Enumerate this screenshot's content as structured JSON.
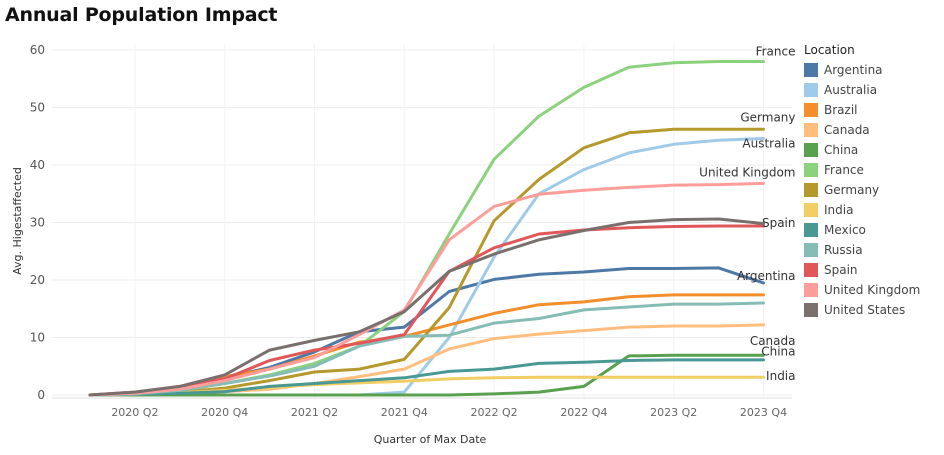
{
  "title": "Annual Population Impact",
  "chart_data": {
    "type": "line",
    "title": "Annual Population Impact",
    "xlabel": "Quarter of Max Date",
    "ylabel": "Avg. Higestaffected",
    "x": [
      "2020 Q1",
      "2020 Q2",
      "2020 Q3",
      "2020 Q4",
      "2021 Q1",
      "2021 Q2",
      "2021 Q3",
      "2021 Q4",
      "2022 Q1",
      "2022 Q2",
      "2022 Q3",
      "2022 Q4",
      "2023 Q1",
      "2023 Q2",
      "2023 Q3",
      "2023 Q4"
    ],
    "x_tick_labels": [
      "2020 Q2",
      "2020 Q4",
      "2021 Q2",
      "2021 Q4",
      "2022 Q2",
      "2022 Q4",
      "2023 Q2",
      "2023 Q4"
    ],
    "ylim": [
      0,
      60
    ],
    "y_ticks": [
      0,
      10,
      20,
      30,
      40,
      50,
      60
    ],
    "grid": true,
    "legend_title": "Location",
    "legend_position": "right",
    "series": [
      {
        "name": "Argentina",
        "color": "#4e79a7",
        "end_label": "Argentina",
        "values": [
          0,
          0.3,
          1.2,
          3.0,
          4.8,
          7.5,
          11,
          11.8,
          18,
          20.1,
          21,
          21.4,
          22,
          22,
          22.1,
          19.5
        ]
      },
      {
        "name": "Australia",
        "color": "#a0cbe8",
        "end_label": "Australia",
        "values": [
          0,
          0,
          0,
          0,
          0,
          0,
          0,
          0.5,
          10,
          24,
          35,
          39.2,
          42.1,
          43.6,
          44.3,
          44.6
        ]
      },
      {
        "name": "Brazil",
        "color": "#f28e2b",
        "end_label": "",
        "values": [
          0,
          0.4,
          1.5,
          3.2,
          4.5,
          6.8,
          9.2,
          10.2,
          12.2,
          14.2,
          15.7,
          16.2,
          17.1,
          17.4,
          17.4,
          17.4
        ]
      },
      {
        "name": "Canada",
        "color": "#ffbe7d",
        "end_label": "Canada",
        "values": [
          0,
          0.1,
          0.3,
          0.6,
          1.0,
          2.0,
          3.2,
          4.5,
          8.0,
          9.8,
          10.6,
          11.2,
          11.8,
          12.0,
          12.0,
          12.2
        ]
      },
      {
        "name": "China",
        "color": "#59a14f",
        "end_label": "China",
        "values": [
          0,
          0,
          0,
          0,
          0,
          0,
          0,
          0,
          0,
          0.2,
          0.5,
          1.5,
          6.8,
          6.9,
          6.9,
          6.9
        ]
      },
      {
        "name": "France",
        "color": "#8cd17d",
        "end_label": "France",
        "values": [
          0,
          0.2,
          0.8,
          2.0,
          3.5,
          5.5,
          8.5,
          14.5,
          28,
          41,
          48.5,
          53.5,
          57,
          57.8,
          58,
          58
        ]
      },
      {
        "name": "Germany",
        "color": "#b6992d",
        "end_label": "Germany",
        "values": [
          0,
          0.1,
          0.5,
          1.2,
          2.5,
          4.0,
          4.5,
          6.2,
          15.2,
          30.3,
          37.5,
          43,
          45.6,
          46.2,
          46.2,
          46.2
        ]
      },
      {
        "name": "India",
        "color": "#f1ce63",
        "end_label": "India",
        "values": [
          0,
          0.1,
          0.4,
          0.8,
          1.3,
          1.8,
          2.1,
          2.4,
          2.8,
          3.0,
          3.1,
          3.1,
          3.1,
          3.1,
          3.1,
          3.1
        ]
      },
      {
        "name": "Mexico",
        "color": "#499894",
        "end_label": "",
        "values": [
          0,
          0.1,
          0.3,
          0.6,
          1.5,
          2.0,
          2.5,
          3.0,
          4.1,
          4.5,
          5.5,
          5.7,
          6.0,
          6.1,
          6.1,
          6.1
        ]
      },
      {
        "name": "Russia",
        "color": "#86bcb6",
        "end_label": "",
        "values": [
          0,
          0.2,
          0.8,
          2.0,
          3.3,
          5.0,
          8.5,
          10.2,
          10.4,
          12.5,
          13.3,
          14.8,
          15.3,
          15.8,
          15.8,
          16.0
        ]
      },
      {
        "name": "Spain",
        "color": "#e15759",
        "end_label": "Spain",
        "values": [
          0,
          0.5,
          1.5,
          2.8,
          6.0,
          7.8,
          9.0,
          10.5,
          21.5,
          25.6,
          28,
          28.7,
          29.1,
          29.3,
          29.4,
          29.4
        ]
      },
      {
        "name": "United Kingdom",
        "color": "#ff9d9a",
        "end_label": "United Kingdom",
        "values": [
          0,
          0.3,
          1.0,
          2.5,
          4.5,
          6.5,
          10.5,
          14.8,
          27,
          32.8,
          34.9,
          35.6,
          36.1,
          36.5,
          36.6,
          36.8
        ]
      },
      {
        "name": "United States",
        "color": "#79706e",
        "end_label": "",
        "values": [
          0,
          0.5,
          1.5,
          3.5,
          7.8,
          9.5,
          11,
          14.5,
          21.5,
          24.5,
          27,
          28.6,
          30,
          30.5,
          30.6,
          29.8
        ]
      }
    ]
  }
}
